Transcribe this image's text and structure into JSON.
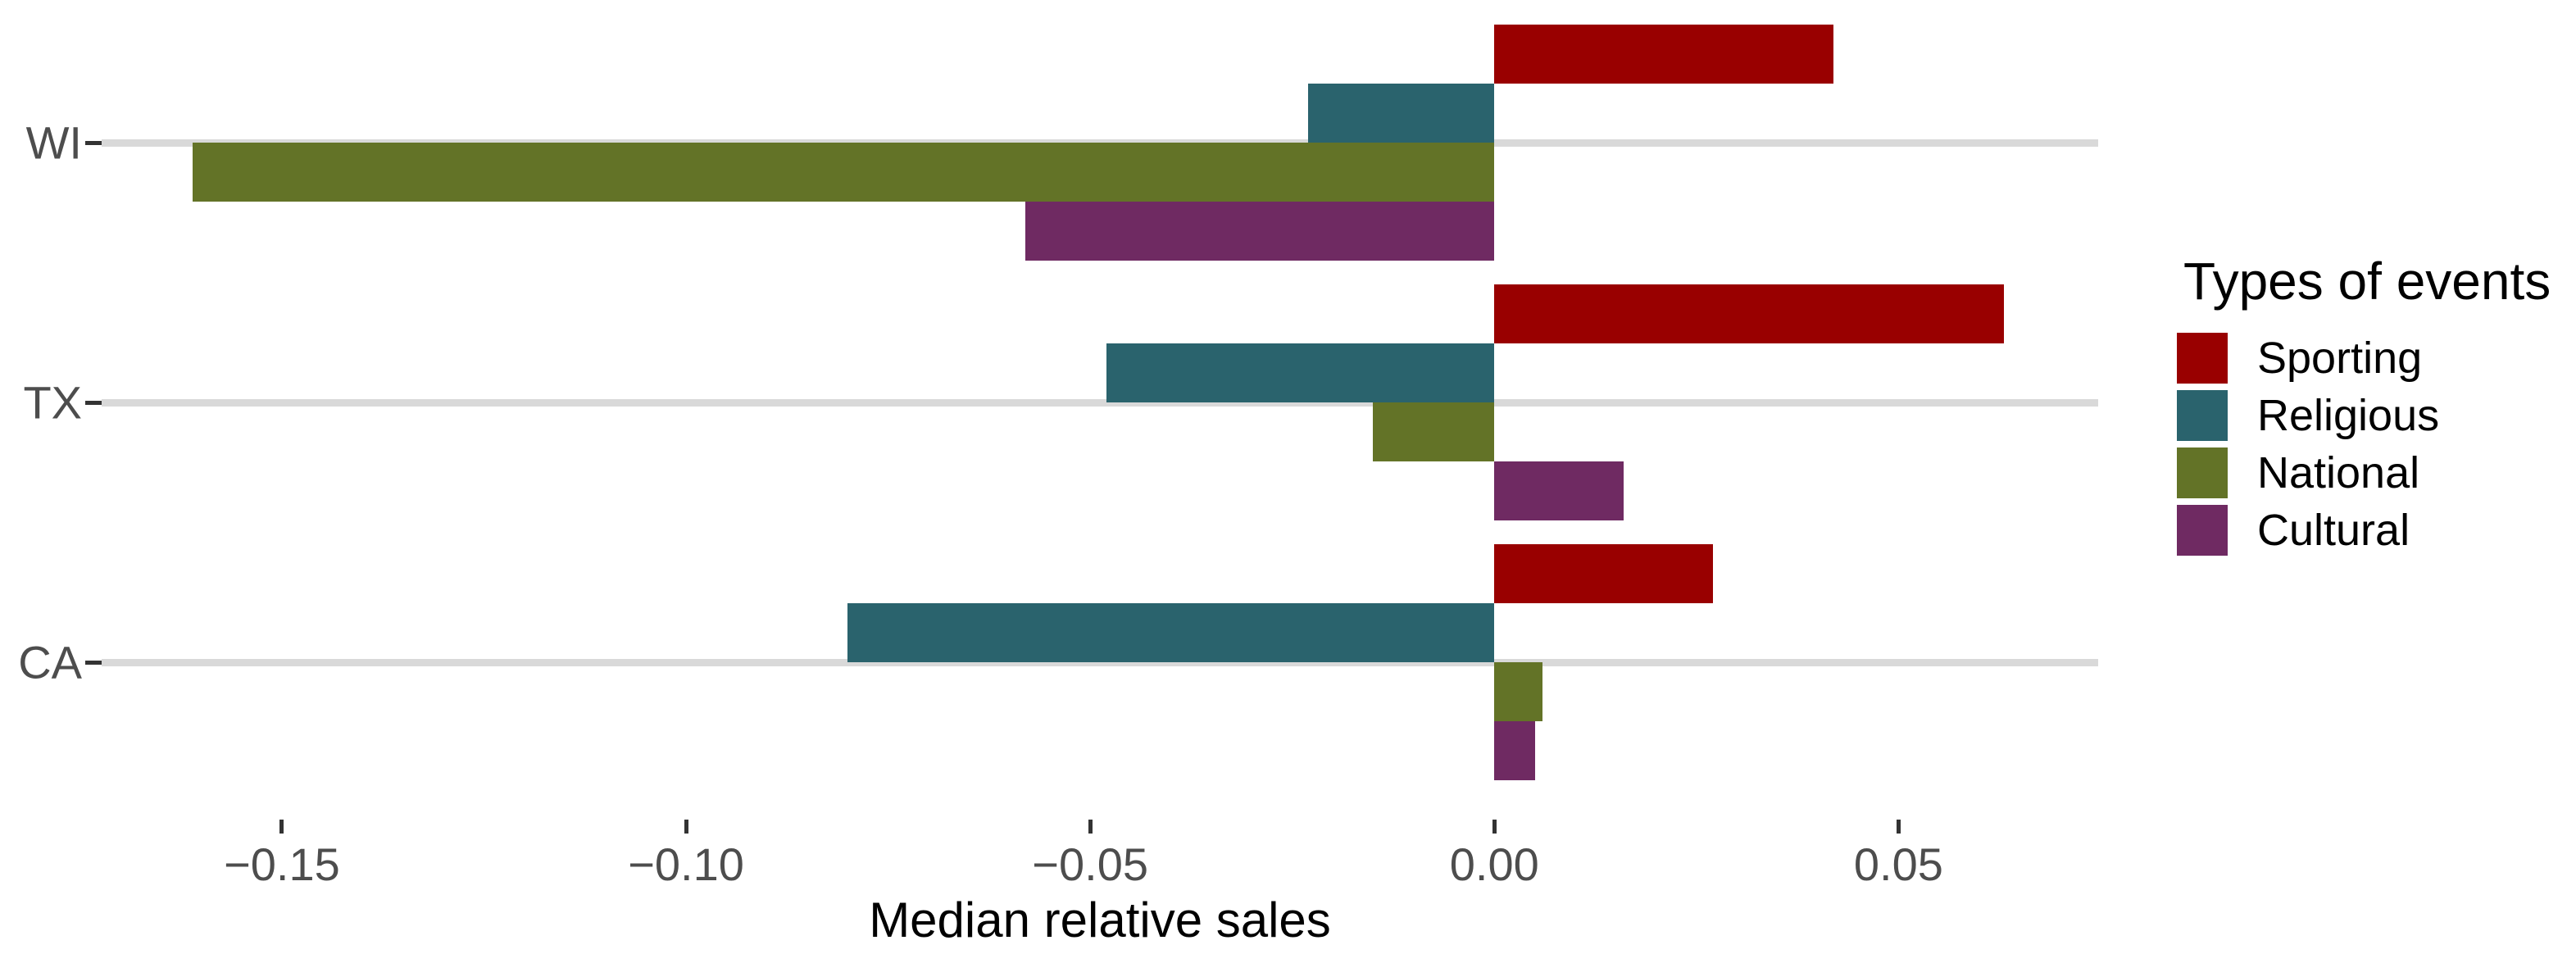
{
  "chart_data": {
    "type": "bar",
    "orientation": "horizontal",
    "title": "",
    "xlabel": "Median relative sales",
    "ylabel": "",
    "categories": [
      "WI",
      "TX",
      "CA"
    ],
    "series": [
      {
        "name": "Sporting",
        "color": "#990000",
        "values": [
          0.042,
          0.063,
          0.027
        ]
      },
      {
        "name": "Religious",
        "color": "#2A636D",
        "values": [
          -0.023,
          -0.048,
          -0.08
        ]
      },
      {
        "name": "National",
        "color": "#637327",
        "values": [
          -0.161,
          -0.015,
          0.006
        ]
      },
      {
        "name": "Cultural",
        "color": "#6F2A62",
        "values": [
          -0.058,
          0.016,
          0.005
        ]
      }
    ],
    "xlim": [
      -0.1723,
      0.0747
    ],
    "x_ticks": [
      {
        "value": -0.15,
        "label": "−0.15"
      },
      {
        "value": -0.1,
        "label": "−0.10"
      },
      {
        "value": -0.05,
        "label": "−0.05"
      },
      {
        "value": 0.0,
        "label": "0.00"
      },
      {
        "value": 0.05,
        "label": "0.05"
      }
    ],
    "legend": {
      "title": "Types of events",
      "position": "right"
    },
    "grid": "horizontal-category-lines-only",
    "background": "#FFFFFF"
  },
  "colors": {
    "gridline": "#D9D9D9",
    "tick_mark": "#333333",
    "tick_label": "#4D4D4D",
    "text": "#000000",
    "background": "#FFFFFF"
  }
}
